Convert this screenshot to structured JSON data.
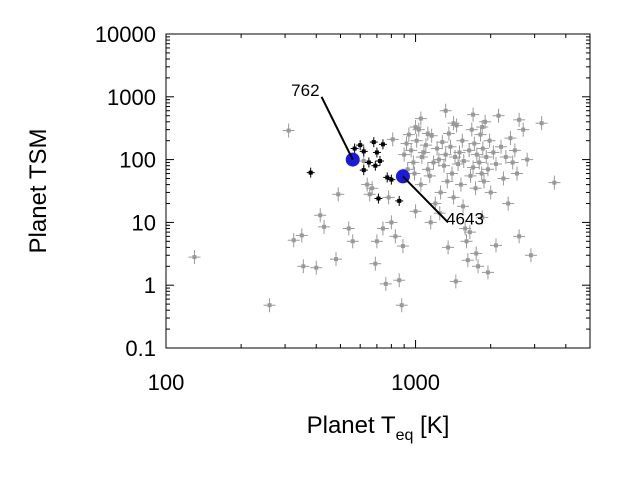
{
  "chart_data": {
    "type": "scatter",
    "title": "",
    "xlabel": "Planet T",
    "xlabel_sub": "eq",
    "xlabel_unit": " [K]",
    "ylabel": "Planet TSM",
    "x_scale": "log",
    "y_scale": "log",
    "xlim": [
      100,
      5000
    ],
    "ylim": [
      0.1,
      10000
    ],
    "x_ticks": [
      {
        "value": 100,
        "label": "100"
      },
      {
        "value": 1000,
        "label": "1000"
      }
    ],
    "y_ticks": [
      {
        "value": 0.1,
        "label": "0.1"
      },
      {
        "value": 1,
        "label": "1"
      },
      {
        "value": 10,
        "label": "10"
      },
      {
        "value": 100,
        "label": "100"
      },
      {
        "value": 1000,
        "label": "1000"
      },
      {
        "value": 10000,
        "label": "10000"
      }
    ],
    "grid": false,
    "colors": {
      "gray_series": "#999999",
      "black_series": "#000000",
      "highlight": "#1a1adc"
    },
    "series": [
      {
        "style": "gray",
        "points": [
          [
            130,
            2.8
          ],
          [
            260,
            0.48
          ],
          [
            310,
            290
          ],
          [
            325,
            5.2
          ],
          [
            350,
            6.2
          ],
          [
            355,
            2.0
          ],
          [
            400,
            1.9
          ],
          [
            415,
            13
          ],
          [
            430,
            8.5
          ],
          [
            480,
            2.6
          ],
          [
            490,
            28
          ],
          [
            540,
            8
          ],
          [
            560,
            5
          ],
          [
            620,
            95
          ],
          [
            640,
            40
          ],
          [
            655,
            28
          ],
          [
            670,
            35
          ],
          [
            690,
            2.2
          ],
          [
            700,
            5
          ],
          [
            740,
            8
          ],
          [
            760,
            1.05
          ],
          [
            780,
            25
          ],
          [
            800,
            10
          ],
          [
            810,
            210
          ],
          [
            830,
            6
          ],
          [
            860,
            1.2
          ],
          [
            880,
            0.48
          ],
          [
            890,
            4.2
          ],
          [
            900,
            120
          ],
          [
            920,
            180
          ],
          [
            930,
            70
          ],
          [
            940,
            250
          ],
          [
            960,
            140
          ],
          [
            980,
            90
          ],
          [
            990,
            60
          ],
          [
            1000,
            15
          ],
          [
            1010,
            200
          ],
          [
            1030,
            300
          ],
          [
            1050,
            40
          ],
          [
            1060,
            110
          ],
          [
            1080,
            130
          ],
          [
            1100,
            170
          ],
          [
            1120,
            70
          ],
          [
            1140,
            55
          ],
          [
            1160,
            240
          ],
          [
            1180,
            90
          ],
          [
            1200,
            20
          ],
          [
            1220,
            150
          ],
          [
            1240,
            100
          ],
          [
            1260,
            30
          ],
          [
            1280,
            190
          ],
          [
            1300,
            80
          ],
          [
            1320,
            120
          ],
          [
            1340,
            45
          ],
          [
            1360,
            260
          ],
          [
            1380,
            160
          ],
          [
            1400,
            60
          ],
          [
            1420,
            25
          ],
          [
            1440,
            110
          ],
          [
            1460,
            350
          ],
          [
            1480,
            85
          ],
          [
            1500,
            130
          ],
          [
            1520,
            40
          ],
          [
            1540,
            200
          ],
          [
            1560,
            95
          ],
          [
            1580,
            8
          ],
          [
            1600,
            5
          ],
          [
            1620,
            2.5
          ],
          [
            1640,
            140
          ],
          [
            1660,
            55
          ],
          [
            1680,
            300
          ],
          [
            1700,
            75
          ],
          [
            1720,
            180
          ],
          [
            1740,
            35
          ],
          [
            1760,
            120
          ],
          [
            1780,
            2
          ],
          [
            1800,
            90
          ],
          [
            1820,
            250
          ],
          [
            1840,
            60
          ],
          [
            1860,
            150
          ],
          [
            1880,
            45
          ],
          [
            1900,
            400
          ],
          [
            1920,
            110
          ],
          [
            1950,
            70
          ],
          [
            1980,
            200
          ],
          [
            2000,
            30
          ],
          [
            2050,
            130
          ],
          [
            2100,
            85
          ],
          [
            2150,
            500
          ],
          [
            2200,
            160
          ],
          [
            2250,
            50
          ],
          [
            2300,
            110
          ],
          [
            2350,
            20
          ],
          [
            2400,
            220
          ],
          [
            2450,
            90
          ],
          [
            2500,
            140
          ],
          [
            2550,
            60
          ],
          [
            2600,
            6
          ],
          [
            2700,
            300
          ],
          [
            2800,
            100
          ],
          [
            2900,
            3
          ],
          [
            1150,
            10
          ],
          [
            1250,
            14
          ],
          [
            1350,
            4
          ],
          [
            1450,
            1.15
          ],
          [
            1550,
            18
          ],
          [
            1650,
            7
          ],
          [
            1750,
            3.2
          ],
          [
            1850,
            12
          ],
          [
            1950,
            1.6
          ],
          [
            2100,
            4.3
          ],
          [
            3200,
            380
          ],
          [
            3600,
            43
          ],
          [
            1050,
            450
          ],
          [
            1320,
            600
          ],
          [
            1700,
            520
          ],
          [
            2600,
            430
          ],
          [
            1850,
            330
          ],
          [
            1420,
            380
          ],
          [
            1120,
            260
          ],
          [
            1000,
            330
          ]
        ]
      },
      {
        "style": "black",
        "points": [
          [
            380,
            62
          ],
          [
            570,
            150
          ],
          [
            600,
            170
          ],
          [
            620,
            68
          ],
          [
            650,
            90
          ],
          [
            680,
            190
          ],
          [
            700,
            130
          ],
          [
            720,
            95
          ],
          [
            740,
            175
          ],
          [
            690,
            80
          ],
          [
            710,
            24
          ],
          [
            770,
            52
          ],
          [
            800,
            48
          ],
          [
            860,
            22
          ],
          [
            620,
            135
          ]
        ]
      },
      {
        "style": "highlight",
        "points": [
          [
            560,
            100
          ],
          [
            890,
            54
          ]
        ]
      }
    ],
    "annotations": [
      {
        "text": "762",
        "target": [
          560,
          100
        ],
        "anchor": [
          420,
          1000
        ]
      },
      {
        "text": "4643",
        "target": [
          890,
          54
        ],
        "anchor": [
          1350,
          10
        ]
      }
    ]
  }
}
